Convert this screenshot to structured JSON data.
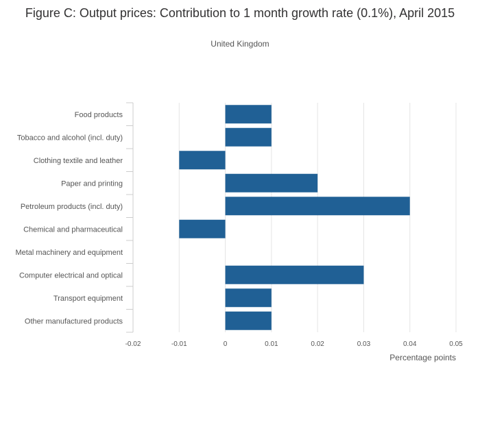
{
  "chart_data": {
    "type": "bar",
    "orientation": "horizontal",
    "title": "Figure C: Output prices: Contribution to 1 month growth rate (0.1%), April 2015",
    "subtitle": "United Kingdom",
    "categories": [
      "Food products",
      "Tobacco and alcohol (incl. duty)",
      "Clothing textile and leather",
      "Paper and printing",
      "Petroleum products (incl. duty)",
      "Chemical and pharmaceutical",
      "Metal machinery and equipment",
      "Computer electrical and optical",
      "Transport equipment",
      "Other manufactured products"
    ],
    "values": [
      0.01,
      0.01,
      -0.01,
      0.02,
      0.04,
      -0.01,
      0,
      0.03,
      0.01,
      0.01
    ],
    "xlabel": "Percentage points",
    "ylabel": "",
    "xlim": [
      -0.02,
      0.05
    ],
    "xticks": [
      -0.02,
      -0.01,
      0,
      0.01,
      0.02,
      0.03,
      0.04,
      0.05
    ],
    "xtick_labels": [
      "-0.02",
      "-0.01",
      "0",
      "0.01",
      "0.02",
      "0.03",
      "0.04",
      "0.05"
    ],
    "grid": true,
    "bar_color": "#206095"
  }
}
